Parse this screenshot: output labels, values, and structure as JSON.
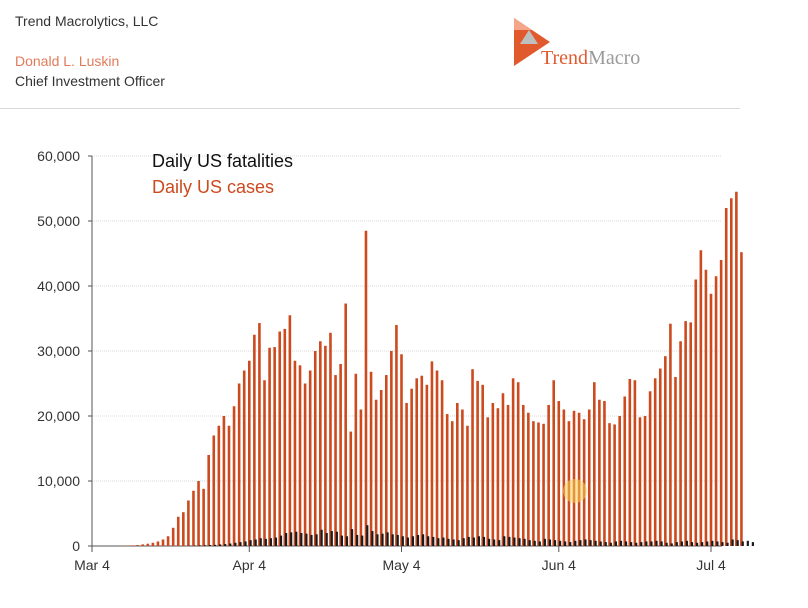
{
  "header": {
    "company": "Trend Macrolytics, LLC",
    "person": "Donald L. Luskin",
    "role": "Chief Investment Officer",
    "logo_word1": "Trend",
    "logo_word2": "Macro"
  },
  "colors": {
    "cases": "#cc4a1e",
    "fatalities": "#1a1a1a",
    "accent": "#e05a2e",
    "grid": "#d9d9d9"
  },
  "chart_data": {
    "type": "bar",
    "title": "",
    "xlabel": "",
    "ylabel": "",
    "ylim": [
      0,
      60000
    ],
    "yticks": [
      0,
      10000,
      20000,
      30000,
      40000,
      50000,
      60000
    ],
    "ytick_labels": [
      "0",
      "10,000",
      "20,000",
      "30,000",
      "40,000",
      "50,000",
      "60,000"
    ],
    "xticks": [
      {
        "label": "Mar 4",
        "day": 0
      },
      {
        "label": "Apr 4",
        "day": 31
      },
      {
        "label": "May 4",
        "day": 61
      },
      {
        "label": "Jun 4",
        "day": 92
      },
      {
        "label": "Jul 4",
        "day": 122
      }
    ],
    "legend": [
      "Daily US fatalities",
      "Daily US cases"
    ],
    "legend_position": "top-left",
    "grid": true,
    "x_start": "Mar 4",
    "series": [
      {
        "name": "Daily US cases",
        "values": [
          0,
          0,
          0,
          0,
          0,
          0,
          50,
          80,
          100,
          150,
          250,
          350,
          500,
          700,
          1000,
          1500,
          2800,
          4500,
          5200,
          7000,
          8500,
          10000,
          8800,
          14000,
          17000,
          18500,
          20000,
          18500,
          21500,
          25000,
          27000,
          28500,
          32500,
          34300,
          25500,
          30500,
          30600,
          33000,
          33400,
          35500,
          28500,
          27800,
          25000,
          27000,
          30000,
          31500,
          30800,
          32800,
          26300,
          28000,
          37300,
          17600,
          26500,
          21000,
          48500,
          26800,
          22500,
          24000,
          26300,
          30000,
          34000,
          29500,
          22000,
          24200,
          25800,
          26200,
          24800,
          28400,
          27000,
          25500,
          20300,
          19200,
          22000,
          21000,
          18500,
          27200,
          25400,
          24800,
          19800,
          22000,
          21200,
          23500,
          21700,
          25800,
          25200,
          21700,
          20500,
          19200,
          19000,
          18800,
          21700,
          25500,
          22300,
          21000,
          19200,
          20800,
          20500,
          19500,
          21000,
          25200,
          22500,
          22300,
          18900,
          18700,
          20000,
          23000,
          25700,
          25500,
          19800,
          20000,
          23800,
          25800,
          27300,
          29200,
          34200,
          26000,
          31500,
          34600,
          34400,
          41000,
          45500,
          42500,
          38800,
          41500,
          44000,
          52000,
          53500,
          54500,
          45200
        ],
        "color": "#cc4a1e"
      },
      {
        "name": "Daily US fatalities",
        "values": [
          0,
          0,
          0,
          0,
          0,
          0,
          0,
          0,
          0,
          0,
          0,
          0,
          0,
          0,
          0,
          0,
          0,
          0,
          0,
          50,
          70,
          100,
          120,
          150,
          180,
          250,
          300,
          380,
          500,
          600,
          700,
          900,
          1000,
          1200,
          1100,
          1200,
          1300,
          1600,
          2000,
          2100,
          2200,
          2000,
          1900,
          1700,
          1800,
          2500,
          2000,
          2300,
          2200,
          1600,
          1500,
          2600,
          1700,
          1600,
          3200,
          2300,
          1800,
          1900,
          2100,
          1800,
          1700,
          1500,
          1300,
          1500,
          1700,
          1800,
          1500,
          1400,
          1200,
          1300,
          1100,
          1000,
          900,
          1200,
          1400,
          1300,
          1500,
          1400,
          1100,
          1000,
          900,
          1500,
          1400,
          1300,
          1200,
          1100,
          900,
          800,
          700,
          1100,
          1000,
          900,
          800,
          700,
          600,
          800,
          900,
          1000,
          900,
          800,
          700,
          600,
          500,
          700,
          800,
          700,
          600,
          500,
          600,
          700,
          700,
          800,
          700,
          500,
          400,
          600,
          700,
          800,
          600,
          500,
          600,
          700,
          800,
          700,
          600,
          500,
          1000,
          900,
          700,
          800,
          600
        ]
      }
    ]
  }
}
